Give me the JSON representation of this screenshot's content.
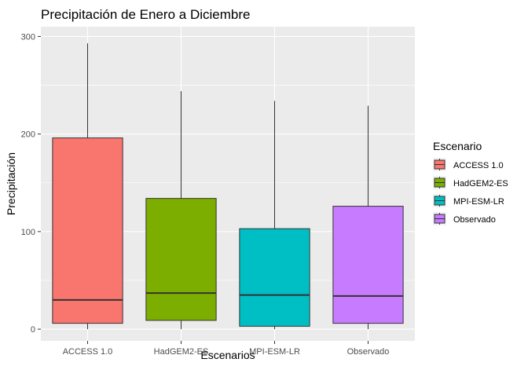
{
  "chart_data": {
    "type": "boxplot",
    "title": "Precipitación de Enero a Diciembre",
    "xlabel": "Escenarios",
    "ylabel": "Precipitación",
    "ylim": [
      -12,
      310
    ],
    "yticks": [
      0,
      100,
      200,
      300
    ],
    "grid": true,
    "legend": {
      "title": "Escenario",
      "placement": "right"
    },
    "categories": [
      "ACCESS 1.0",
      "HadGEM2-ES",
      "MPI-ESM-LR",
      "Observado"
    ],
    "series": [
      {
        "name": "ACCESS 1.0",
        "color": "#F8766D",
        "min": 0,
        "q1": 6,
        "median": 30,
        "q3": 196,
        "max": 293
      },
      {
        "name": "HadGEM2-ES",
        "color": "#7CAE00",
        "min": 0,
        "q1": 9,
        "median": 37,
        "q3": 134,
        "max": 244
      },
      {
        "name": "MPI-ESM-LR",
        "color": "#00BFC4",
        "min": 0,
        "q1": 3,
        "median": 35,
        "q3": 103,
        "max": 234
      },
      {
        "name": "Observado",
        "color": "#C77CFF",
        "min": 0,
        "q1": 6,
        "median": 34,
        "q3": 126,
        "max": 229
      }
    ]
  }
}
